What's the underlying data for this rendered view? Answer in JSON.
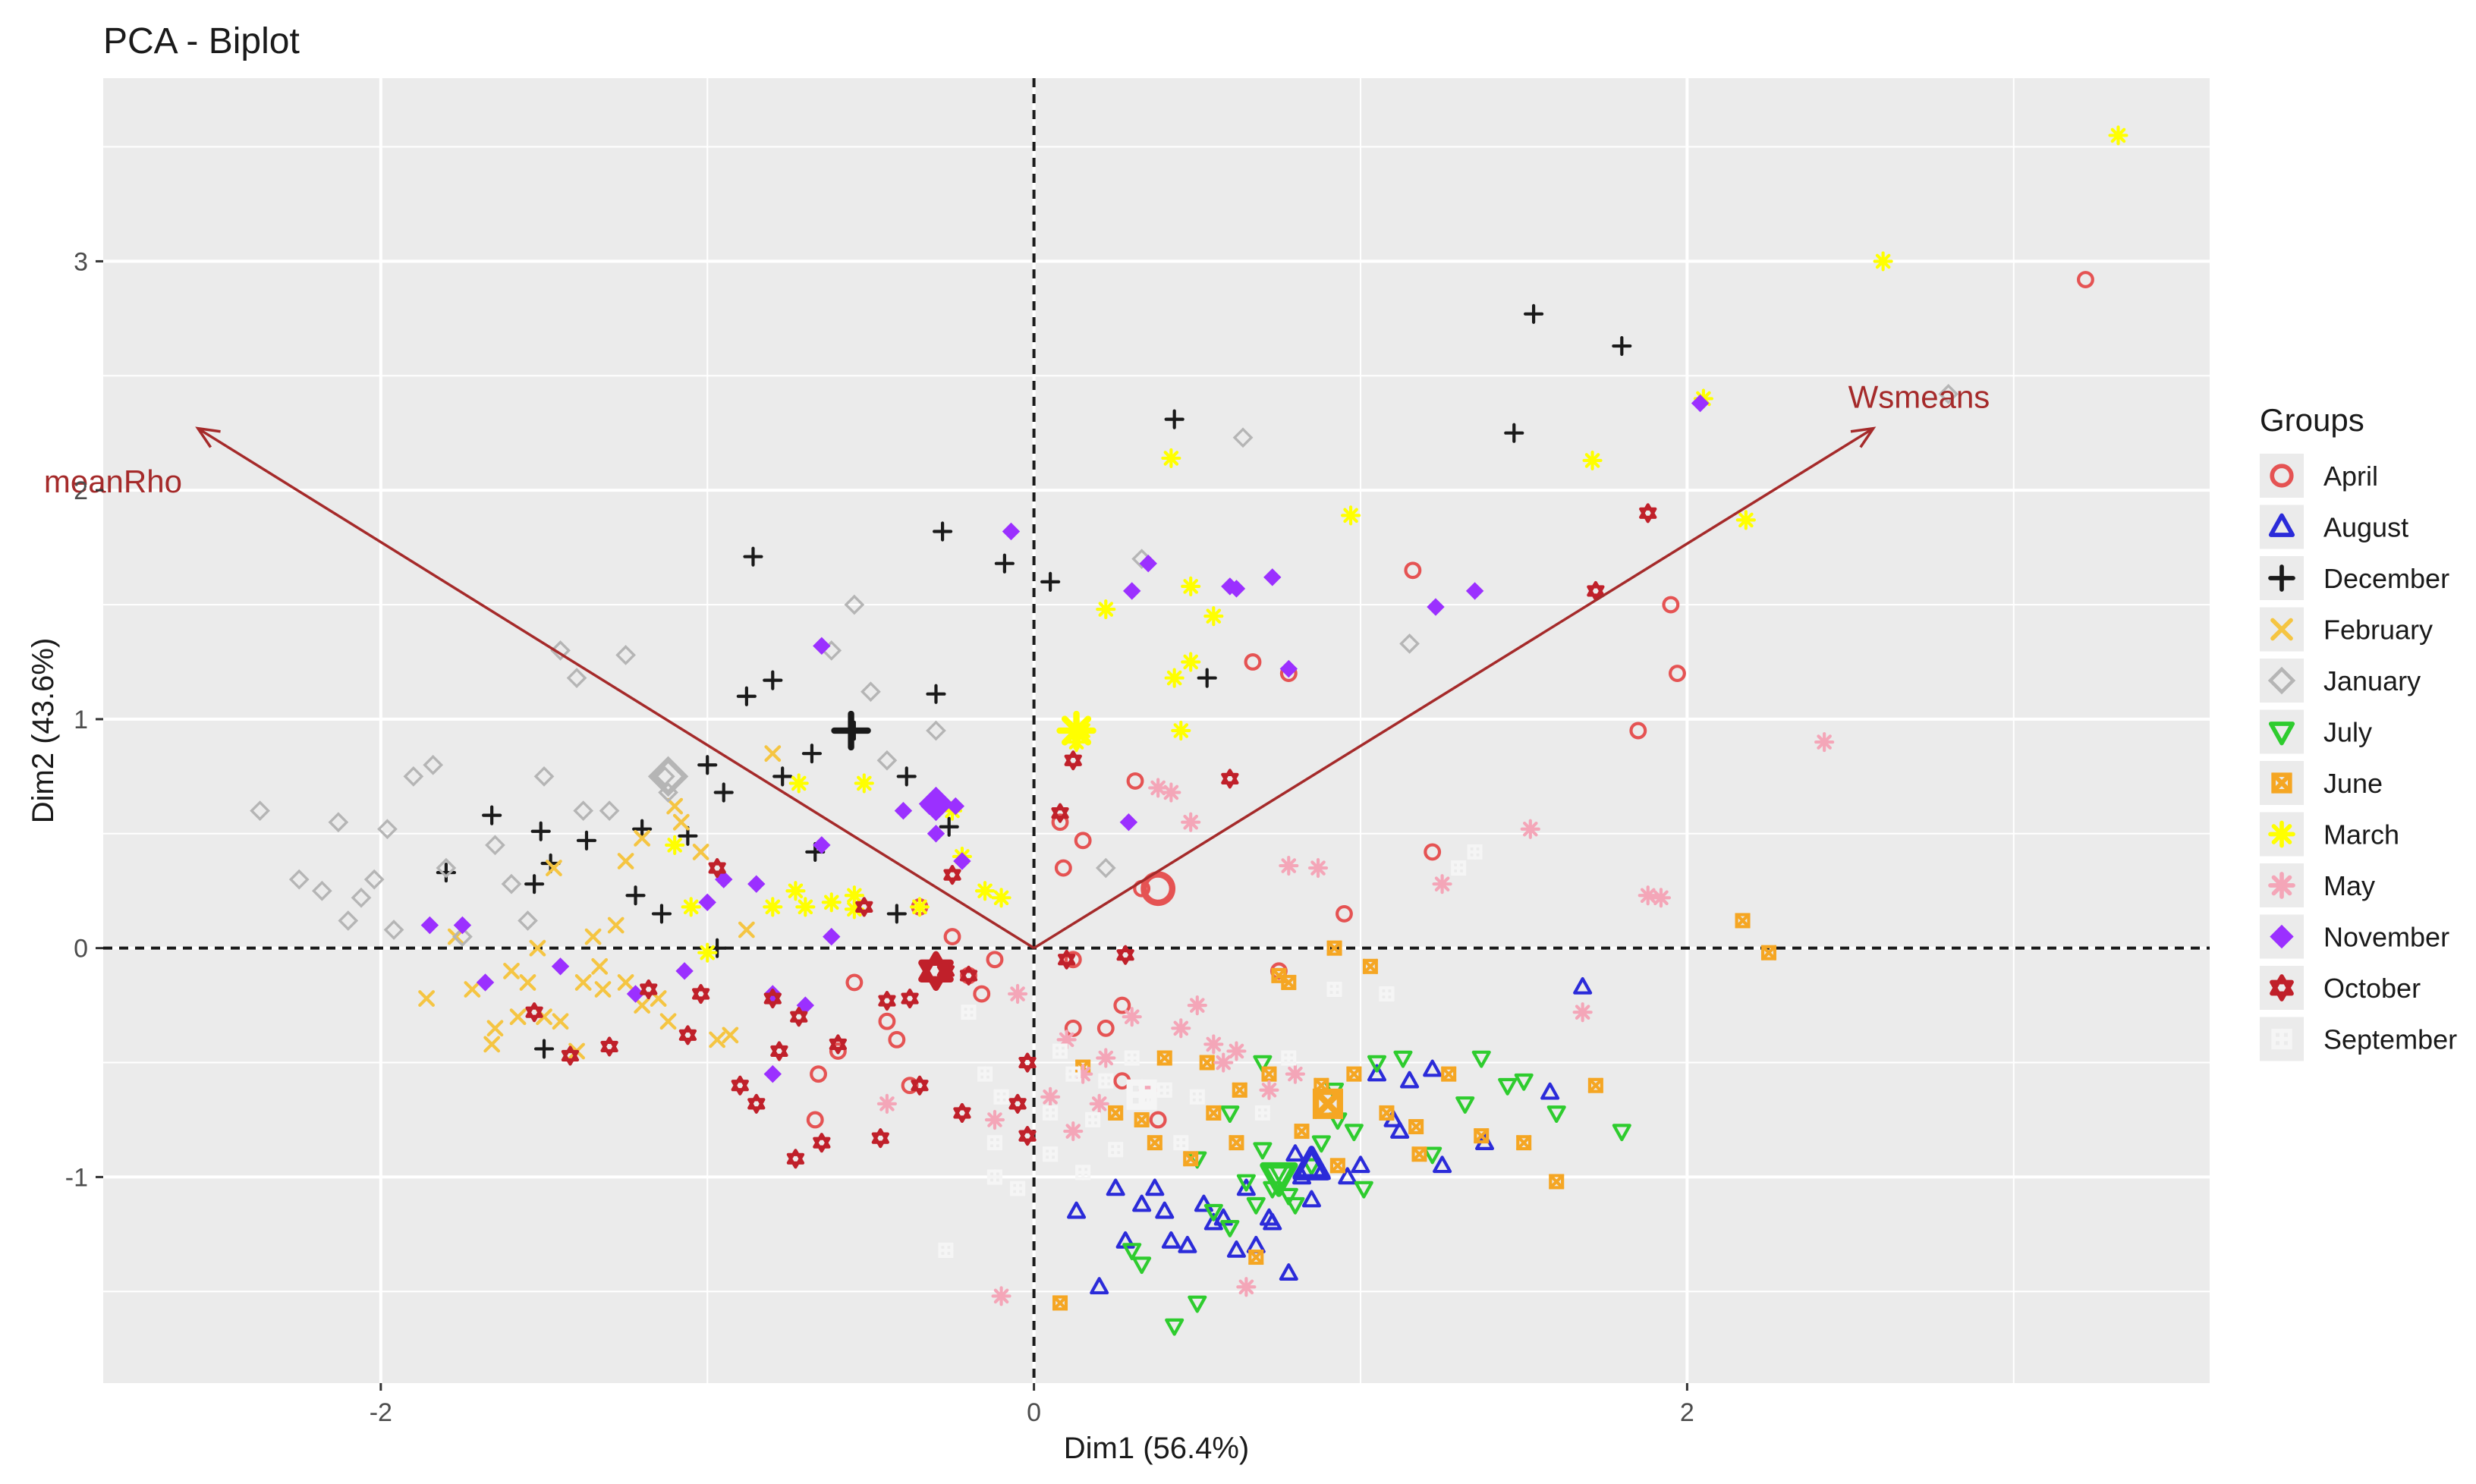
{
  "chart_data": {
    "type": "scatter",
    "title": "PCA - Biplot",
    "xlabel": "Dim1 (56.4%)",
    "ylabel": "Dim2 (43.6%)",
    "xlim": [
      -2.85,
      3.6
    ],
    "ylim": [
      -1.9,
      3.8
    ],
    "x_ticks": [
      -2,
      0,
      2
    ],
    "y_ticks": [
      -1,
      0,
      1,
      2,
      3
    ],
    "x_tick_labels": [
      "-2",
      "0",
      "2"
    ],
    "y_tick_labels": [
      "-1",
      "0",
      "1",
      "2",
      "3"
    ],
    "grid": true,
    "legend_position": "right",
    "legend_title": "Groups",
    "arrows": [
      {
        "name": "meanRho",
        "x": -2.56,
        "y": 2.27,
        "color": "#a52a2a",
        "label_dx": -0.26,
        "label_dy": -0.28
      },
      {
        "name": "Wsmeans",
        "x": 2.57,
        "y": 2.27,
        "color": "#a52a2a",
        "label_dx": 0.14,
        "label_dy": 0.09
      }
    ],
    "series": [
      {
        "name": "April",
        "color": "#e55353",
        "shape": "circle-open",
        "x": [
          3.22,
          1.16,
          1.95,
          1.97,
          1.85,
          0.67,
          0.78,
          0.31,
          0.95,
          1.22,
          0.09,
          0.12,
          0.15,
          0.33,
          0.75,
          0.27,
          0.22,
          -0.2,
          -0.45,
          -0.6,
          -0.38,
          -0.67,
          0.27,
          0.38,
          -0.12,
          -0.55,
          -0.35,
          -0.42,
          -0.25,
          -0.66,
          -0.16,
          0.12,
          0.08
        ],
        "y": [
          2.92,
          1.65,
          1.5,
          1.2,
          0.95,
          1.25,
          1.2,
          0.73,
          0.15,
          0.42,
          0.35,
          -0.05,
          0.47,
          0.26,
          -0.1,
          -0.25,
          -0.35,
          -0.12,
          -0.32,
          -0.45,
          -0.6,
          -0.75,
          -0.58,
          -0.75,
          -0.05,
          -0.15,
          0.18,
          -0.4,
          0.05,
          -0.55,
          -0.2,
          -0.35,
          0.55
        ]
      },
      {
        "name": "August",
        "color": "#2b2bd9",
        "shape": "triangle-open",
        "x": [
          0.13,
          0.25,
          0.33,
          0.42,
          0.47,
          0.52,
          0.58,
          0.62,
          0.68,
          0.73,
          0.78,
          0.82,
          0.88,
          0.96,
          1.05,
          1.15,
          1.22,
          1.25,
          1.38,
          1.58,
          1.68,
          0.2,
          0.28,
          0.37,
          0.55,
          0.65,
          0.8,
          1.0,
          1.12,
          0.4,
          0.72,
          0.85,
          1.1
        ],
        "y": [
          -1.15,
          -1.05,
          -1.12,
          -1.28,
          -1.3,
          -1.12,
          -1.18,
          -1.32,
          -1.3,
          -1.2,
          -1.42,
          -1.0,
          -0.98,
          -1.0,
          -0.55,
          -0.58,
          -0.53,
          -0.95,
          -0.85,
          -0.63,
          -0.17,
          -1.48,
          -1.28,
          -1.05,
          -1.2,
          -1.05,
          -0.9,
          -0.95,
          -0.8,
          -1.15,
          -1.18,
          -1.1,
          -0.75
        ]
      },
      {
        "name": "December",
        "color": "#1a1a1a",
        "shape": "plus",
        "x": [
          1.53,
          1.8,
          1.47,
          0.43,
          -0.86,
          -0.28,
          -0.09,
          0.05,
          0.53,
          -0.88,
          -0.8,
          -0.3,
          -0.55,
          -0.68,
          -0.77,
          -0.39,
          -1.0,
          -1.8,
          -1.66,
          -1.51,
          -1.48,
          -1.37,
          -1.22,
          -1.06,
          -0.95,
          -1.14,
          -1.5,
          -0.26,
          -0.42,
          -0.67,
          -1.53,
          -1.2,
          -0.97
        ],
        "y": [
          2.77,
          2.63,
          2.25,
          2.31,
          1.71,
          1.82,
          1.68,
          1.6,
          1.18,
          1.1,
          1.17,
          1.11,
          0.95,
          0.85,
          0.75,
          0.75,
          0.8,
          0.33,
          0.58,
          0.51,
          0.37,
          0.47,
          0.23,
          0.49,
          0.68,
          0.15,
          -0.44,
          0.53,
          0.15,
          0.42,
          0.28,
          0.52,
          0.0
        ]
      },
      {
        "name": "February",
        "color": "#f5c542",
        "shape": "cross",
        "x": [
          -1.86,
          -1.77,
          -1.72,
          -1.65,
          -1.58,
          -1.52,
          -1.45,
          -1.38,
          -1.32,
          -1.25,
          -1.2,
          -1.15,
          -1.12,
          -1.08,
          -1.02,
          -0.97,
          -0.93,
          -0.88,
          -1.6,
          -1.47,
          -1.33,
          -1.28,
          -1.4,
          -1.55,
          -1.66,
          -1.35,
          -1.5,
          -1.25,
          -0.8,
          -1.1,
          -1.2
        ],
        "y": [
          -0.22,
          0.05,
          -0.18,
          -0.35,
          -0.3,
          0.0,
          -0.32,
          -0.15,
          -0.18,
          -0.15,
          -0.25,
          -0.22,
          -0.32,
          0.55,
          0.42,
          -0.4,
          -0.38,
          0.08,
          -0.1,
          0.35,
          -0.08,
          0.1,
          -0.45,
          -0.15,
          -0.42,
          0.05,
          -0.3,
          0.38,
          0.85,
          0.62,
          0.48
        ]
      },
      {
        "name": "January",
        "color": "#b5b5b5",
        "shape": "diamond-open",
        "x": [
          -2.37,
          -2.25,
          -2.18,
          -2.13,
          -2.1,
          -2.06,
          -2.02,
          -1.98,
          -1.96,
          -1.9,
          -1.84,
          -1.8,
          -1.75,
          -1.65,
          -1.6,
          -1.55,
          -1.5,
          -1.45,
          -1.4,
          -1.38,
          -1.3,
          -1.25,
          -1.12,
          -0.62,
          -0.55,
          -0.5,
          -0.3,
          0.22,
          0.33,
          0.64,
          1.15,
          2.8,
          -1.13,
          -0.45
        ],
        "y": [
          0.6,
          0.3,
          0.25,
          0.55,
          0.12,
          0.22,
          0.3,
          0.52,
          0.08,
          0.75,
          0.8,
          0.35,
          0.05,
          0.45,
          0.28,
          0.12,
          0.75,
          1.3,
          1.18,
          0.6,
          0.6,
          1.28,
          0.68,
          1.3,
          1.5,
          1.12,
          0.95,
          0.35,
          1.7,
          2.23,
          1.33,
          2.42,
          0.75,
          0.82
        ]
      },
      {
        "name": "July",
        "color": "#2ecc2e",
        "shape": "triangle-down-open",
        "x": [
          0.3,
          0.33,
          0.43,
          0.5,
          0.55,
          0.6,
          0.65,
          0.7,
          0.73,
          0.78,
          0.85,
          0.92,
          0.98,
          1.05,
          1.13,
          1.22,
          1.32,
          1.37,
          1.45,
          1.5,
          1.6,
          1.8,
          0.5,
          0.68,
          0.8,
          0.88,
          1.01,
          0.75,
          0.6,
          0.93,
          0.7
        ],
        "y": [
          -1.32,
          -1.38,
          -1.65,
          -1.55,
          -1.15,
          -1.22,
          -1.02,
          -0.5,
          -1.05,
          -1.08,
          -0.95,
          -0.62,
          -0.8,
          -0.5,
          -0.48,
          -0.9,
          -0.68,
          -0.48,
          -0.6,
          -0.58,
          -0.72,
          -0.8,
          -0.92,
          -1.12,
          -1.12,
          -0.85,
          -1.05,
          -0.98,
          -0.72,
          -0.75,
          -0.88
        ]
      },
      {
        "name": "June",
        "color": "#f5a623",
        "shape": "square-x",
        "x": [
          0.72,
          0.78,
          0.88,
          0.98,
          1.08,
          1.17,
          1.27,
          1.37,
          1.5,
          1.6,
          1.72,
          2.17,
          2.25,
          0.15,
          0.25,
          0.33,
          0.4,
          0.48,
          0.55,
          0.62,
          0.68,
          0.75,
          0.82,
          0.92,
          0.08,
          0.37,
          0.63,
          0.93,
          1.03,
          1.18,
          0.53
        ],
        "y": [
          -0.55,
          -0.15,
          -0.6,
          -0.55,
          -0.72,
          -0.78,
          -0.55,
          -0.82,
          -0.85,
          -1.02,
          -0.6,
          0.12,
          -0.02,
          -0.52,
          -0.72,
          -0.75,
          -0.48,
          -0.92,
          -0.72,
          -0.85,
          -1.35,
          -0.12,
          -0.8,
          0.0,
          -1.55,
          -0.85,
          -0.62,
          -0.95,
          -0.08,
          -0.9,
          -0.5
        ]
      },
      {
        "name": "March",
        "color": "#ffff00",
        "shape": "asterisk",
        "x": [
          3.32,
          2.6,
          2.05,
          1.71,
          2.18,
          0.97,
          0.42,
          0.48,
          0.48,
          0.55,
          0.43,
          0.45,
          0.22,
          0.15,
          0.13,
          -0.1,
          -0.15,
          -0.22,
          -0.25,
          -0.35,
          -0.52,
          -0.55,
          -0.62,
          -0.7,
          -0.72,
          -0.73,
          -0.8,
          -1.0,
          -1.05,
          -1.1,
          -0.55
        ],
        "y": [
          3.55,
          3.0,
          2.4,
          2.13,
          1.87,
          1.89,
          2.14,
          1.58,
          1.25,
          1.45,
          1.18,
          0.95,
          1.48,
          0.95,
          0.9,
          0.22,
          0.25,
          0.4,
          0.6,
          0.18,
          0.72,
          0.23,
          0.2,
          0.18,
          0.72,
          0.25,
          0.18,
          -0.02,
          0.18,
          0.45,
          0.17
        ]
      },
      {
        "name": "May",
        "color": "#f4a6b8",
        "shape": "asterisk",
        "x": [
          2.42,
          1.92,
          1.88,
          1.52,
          1.25,
          0.87,
          0.78,
          0.48,
          0.42,
          0.38,
          0.5,
          0.62,
          0.72,
          0.55,
          0.3,
          0.22,
          0.15,
          0.1,
          0.05,
          0.12,
          0.2,
          0.35,
          0.45,
          0.58,
          0.65,
          0.8,
          -0.1,
          -0.45,
          -0.12,
          -0.05,
          1.68
        ],
        "y": [
          0.9,
          0.22,
          0.23,
          0.52,
          0.28,
          0.35,
          0.36,
          0.55,
          0.68,
          0.7,
          -0.25,
          -0.45,
          -0.62,
          -0.42,
          -0.3,
          -0.48,
          -0.55,
          -0.4,
          -0.65,
          -0.8,
          -0.68,
          -0.62,
          -0.35,
          -0.5,
          -1.48,
          -0.55,
          -1.52,
          -0.68,
          -0.75,
          -0.2,
          -0.28
        ]
      },
      {
        "name": "November",
        "color": "#9b30ff",
        "shape": "diamond-plus",
        "x": [
          2.04,
          1.35,
          1.23,
          0.78,
          0.62,
          0.35,
          0.3,
          0.6,
          0.73,
          -0.07,
          -0.65,
          -0.32,
          -0.3,
          -0.24,
          -0.22,
          -0.4,
          -0.62,
          -0.7,
          -0.8,
          -0.85,
          -0.95,
          -1.0,
          -1.07,
          -1.22,
          -1.45,
          -1.68,
          -1.75,
          -1.85,
          -0.8,
          0.29,
          -0.65
        ],
        "y": [
          2.38,
          1.56,
          1.49,
          1.22,
          1.57,
          1.68,
          1.56,
          1.58,
          1.62,
          1.82,
          1.32,
          0.62,
          0.5,
          0.62,
          0.38,
          0.6,
          0.05,
          -0.25,
          -0.2,
          0.28,
          0.3,
          0.2,
          -0.1,
          -0.2,
          -0.08,
          -0.15,
          0.1,
          0.1,
          -0.55,
          0.55,
          0.45
        ]
      },
      {
        "name": "October",
        "color": "#c0202a",
        "shape": "star-of-david",
        "x": [
          1.88,
          1.72,
          0.6,
          0.12,
          0.08,
          -0.2,
          -0.27,
          -0.38,
          -0.35,
          -0.45,
          -0.47,
          -0.6,
          -0.65,
          -0.72,
          -0.73,
          -0.78,
          -0.8,
          -0.85,
          -0.9,
          -0.97,
          -1.02,
          -1.06,
          -1.18,
          -1.3,
          -1.42,
          -1.53,
          -0.25,
          -0.22,
          -0.02,
          -0.05,
          -0.02,
          0.1,
          0.28,
          -0.52
        ],
        "y": [
          1.9,
          1.56,
          0.74,
          0.82,
          0.59,
          -0.12,
          -0.1,
          -0.22,
          -0.6,
          -0.23,
          -0.83,
          -0.42,
          -0.85,
          -0.3,
          -0.92,
          -0.45,
          -0.22,
          -0.68,
          -0.6,
          0.35,
          -0.2,
          -0.38,
          -0.18,
          -0.43,
          -0.47,
          -0.28,
          0.32,
          -0.72,
          -0.5,
          -0.68,
          -0.82,
          -0.05,
          -0.03,
          0.18
        ]
      },
      {
        "name": "September",
        "color": "#f5f5f5",
        "shape": "square-plus",
        "x": [
          1.35,
          1.3,
          0.92,
          1.08,
          0.5,
          0.4,
          0.35,
          0.3,
          0.25,
          0.22,
          0.18,
          0.15,
          0.12,
          0.08,
          0.05,
          -0.05,
          -0.1,
          -0.12,
          -0.27,
          -0.2,
          -0.15,
          -0.12,
          0.05,
          0.7,
          0.78,
          0.45
        ],
        "y": [
          0.42,
          0.35,
          -0.18,
          -0.2,
          -0.65,
          -0.62,
          -0.65,
          -0.48,
          -0.88,
          -0.58,
          -0.75,
          -0.98,
          -0.55,
          -0.45,
          -0.9,
          -1.05,
          -0.65,
          -0.85,
          -1.32,
          -0.28,
          -0.55,
          -1.0,
          -0.72,
          -0.72,
          -0.48,
          -0.85
        ]
      }
    ],
    "highlights": [
      {
        "series": "April",
        "x": 0.38,
        "y": 0.26
      },
      {
        "series": "December",
        "x": -0.56,
        "y": 0.95
      },
      {
        "series": "January",
        "x": -1.12,
        "y": 0.75
      },
      {
        "series": "March",
        "x": 0.13,
        "y": 0.95
      },
      {
        "series": "November",
        "x": -0.3,
        "y": 0.63
      },
      {
        "series": "October",
        "x": -0.3,
        "y": -0.1
      },
      {
        "series": "June",
        "x": 0.9,
        "y": -0.68
      },
      {
        "series": "September",
        "x": 0.33,
        "y": -0.64
      },
      {
        "series": "July",
        "x": 0.75,
        "y": -1.0
      },
      {
        "series": "August",
        "x": 0.85,
        "y": -0.95
      }
    ]
  }
}
